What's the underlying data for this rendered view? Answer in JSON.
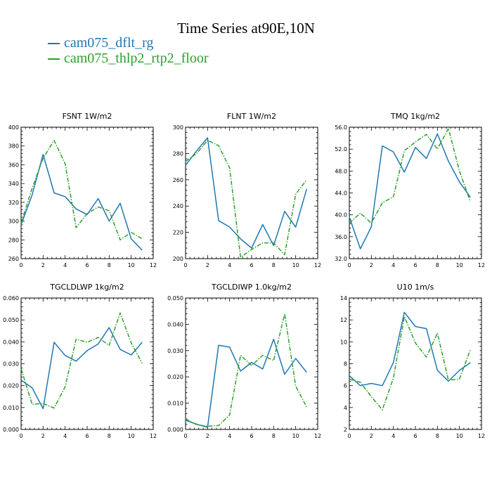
{
  "title": "Time Series at90E,10N",
  "legend": [
    {
      "name": "cam075_dflt_rg",
      "color": "#1f77b4"
    },
    {
      "name": "cam075_thlp2_rtp2_floor",
      "color": "#2ca02c"
    }
  ],
  "chart_data": [
    {
      "type": "line",
      "title": "FSNT",
      "units": "1W/m2",
      "xlim": [
        0,
        12
      ],
      "xticks": [
        "0",
        "2",
        "4",
        "6",
        "8",
        "10",
        "12"
      ],
      "ylim": [
        260,
        400
      ],
      "yticks": [
        "260",
        "280",
        "300",
        "320",
        "340",
        "360",
        "380",
        "400"
      ],
      "x": [
        0,
        1,
        2,
        3,
        4,
        5,
        6,
        7,
        8,
        9,
        10,
        11
      ],
      "series": [
        {
          "name": "cam075_dflt_rg",
          "values": [
            296,
            328,
            371,
            330,
            326,
            313,
            307,
            324,
            300,
            319,
            281,
            269
          ]
        },
        {
          "name": "cam075_thlp2_rtp2_floor",
          "values": [
            298,
            335,
            367,
            386,
            361,
            293,
            308,
            315,
            311,
            280,
            288,
            281
          ]
        }
      ]
    },
    {
      "type": "line",
      "title": "FLNT",
      "units": "1W/m2",
      "xlim": [
        0,
        12
      ],
      "xticks": [
        "0",
        "2",
        "4",
        "6",
        "8",
        "10",
        "12"
      ],
      "ylim": [
        200,
        300
      ],
      "yticks": [
        "200",
        "220",
        "240",
        "260",
        "280",
        "300"
      ],
      "x": [
        0,
        1,
        2,
        3,
        4,
        5,
        6,
        7,
        8,
        9,
        10,
        11
      ],
      "series": [
        {
          "name": "cam075_dflt_rg",
          "values": [
            271,
            282,
            292,
            229,
            224,
            215,
            208,
            226,
            210,
            236,
            224,
            253
          ]
        },
        {
          "name": "cam075_thlp2_rtp2_floor",
          "values": [
            274,
            280,
            290,
            286,
            269,
            201,
            207,
            212,
            212,
            203,
            249,
            260
          ]
        }
      ]
    },
    {
      "type": "line",
      "title": "TMQ",
      "units": "1kg/m2",
      "xlim": [
        0,
        12
      ],
      "xticks": [
        "0",
        "2",
        "4",
        "6",
        "8",
        "10",
        "12"
      ],
      "ylim": [
        32,
        56
      ],
      "yticks": [
        "32.0",
        "36.0",
        "40.0",
        "44.0",
        "48.0",
        "52.0",
        "56.0"
      ],
      "x": [
        0,
        1,
        2,
        3,
        4,
        5,
        6,
        7,
        8,
        9,
        10,
        11
      ],
      "series": [
        {
          "name": "cam075_dflt_rg",
          "values": [
            39.6,
            33.8,
            37.8,
            52.6,
            51.5,
            47.8,
            52.3,
            50.3,
            54.8,
            49.8,
            46.0,
            43.2
          ]
        },
        {
          "name": "cam075_thlp2_rtp2_floor",
          "values": [
            38.5,
            40.3,
            38.5,
            42.2,
            43.3,
            51.7,
            53.3,
            54.7,
            52.0,
            55.8,
            48.0,
            42.4
          ]
        }
      ]
    },
    {
      "type": "line",
      "title": "TGCLDLWP",
      "units": "1kg/m2",
      "xlim": [
        0,
        12
      ],
      "xticks": [
        "0",
        "2",
        "4",
        "6",
        "8",
        "10",
        "12"
      ],
      "ylim": [
        0,
        0.06
      ],
      "yticks": [
        "0.000",
        "0.010",
        "0.020",
        "0.030",
        "0.040",
        "0.050",
        "0.060"
      ],
      "x": [
        0,
        1,
        2,
        3,
        4,
        5,
        6,
        7,
        8,
        9,
        10,
        11
      ],
      "series": [
        {
          "name": "cam075_dflt_rg",
          "values": [
            0.0225,
            0.019,
            0.0095,
            0.0398,
            0.0338,
            0.0312,
            0.036,
            0.039,
            0.0465,
            0.0365,
            0.034,
            0.0398
          ]
        },
        {
          "name": "cam075_thlp2_rtp2_floor",
          "values": [
            0.0278,
            0.0115,
            0.0118,
            0.0098,
            0.0195,
            0.0412,
            0.0398,
            0.042,
            0.0383,
            0.0532,
            0.0395,
            0.0302
          ]
        }
      ]
    },
    {
      "type": "line",
      "title": "TGCLDIWP",
      "units": "1.0kg/m2",
      "xlim": [
        0,
        12
      ],
      "xticks": [
        "0",
        "2",
        "4",
        "6",
        "8",
        "10",
        "12"
      ],
      "ylim": [
        0,
        0.05
      ],
      "yticks": [
        "0.000",
        "0.010",
        "0.020",
        "0.030",
        "0.040",
        "0.050"
      ],
      "x": [
        0,
        1,
        2,
        3,
        4,
        5,
        6,
        7,
        8,
        9,
        10,
        11
      ],
      "series": [
        {
          "name": "cam075_dflt_rg",
          "values": [
            0.0035,
            0.002,
            0.0008,
            0.032,
            0.0313,
            0.0222,
            0.0255,
            0.023,
            0.0343,
            0.021,
            0.027,
            0.0217
          ]
        },
        {
          "name": "cam075_thlp2_rtp2_floor",
          "values": [
            0.004,
            0.0018,
            0.0012,
            0.0015,
            0.0055,
            0.0282,
            0.0243,
            0.0282,
            0.0262,
            0.044,
            0.0165,
            0.0085
          ]
        }
      ]
    },
    {
      "type": "line",
      "title": "U10",
      "units": "1m/s",
      "xlim": [
        0,
        12
      ],
      "xticks": [
        "0",
        "2",
        "4",
        "6",
        "8",
        "10",
        "12"
      ],
      "ylim": [
        2,
        14
      ],
      "yticks": [
        "2",
        "4",
        "6",
        "8",
        "10",
        "12",
        "14"
      ],
      "x": [
        0,
        1,
        2,
        3,
        4,
        5,
        6,
        7,
        8,
        9,
        10,
        11
      ],
      "series": [
        {
          "name": "cam075_dflt_rg",
          "values": [
            6.9,
            6.0,
            6.2,
            6.0,
            8.1,
            12.7,
            11.4,
            11.2,
            7.4,
            6.4,
            7.4,
            8.1
          ]
        },
        {
          "name": "cam075_thlp2_rtp2_floor",
          "values": [
            6.6,
            6.3,
            5.0,
            3.8,
            6.7,
            12.3,
            9.9,
            8.6,
            10.8,
            6.5,
            6.6,
            9.3
          ]
        }
      ]
    }
  ]
}
